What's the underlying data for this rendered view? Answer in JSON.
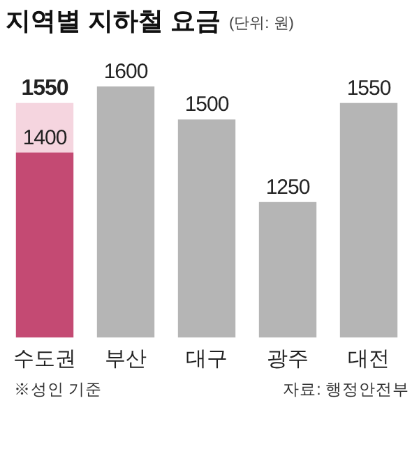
{
  "chart_data": {
    "type": "bar",
    "title": "지역별 지하철 요금",
    "subtitle": "(단위: 원)",
    "categories": [
      "수도권",
      "부산",
      "대구",
      "광주",
      "대전"
    ],
    "series": [
      {
        "colors": [
          "#f5d5df",
          null,
          null,
          null,
          null
        ],
        "values": [
          1550,
          null,
          null,
          null,
          null
        ],
        "value_labels": [
          "1550",
          null,
          null,
          null,
          null
        ]
      },
      {
        "colors": [
          "#c44a73",
          "#b5b5b5",
          "#b5b5b5",
          "#b5b5b5",
          "#b5b5b5"
        ],
        "values": [
          1400,
          1600,
          1500,
          1250,
          1550
        ],
        "value_labels": [
          "1400",
          "1600",
          "1500",
          "1250",
          "1550"
        ]
      }
    ],
    "ylim": [
      840,
      1600
    ],
    "tick_labels": "x",
    "annotations": [
      "※성인 기준",
      "자료: 행정안전부"
    ]
  }
}
